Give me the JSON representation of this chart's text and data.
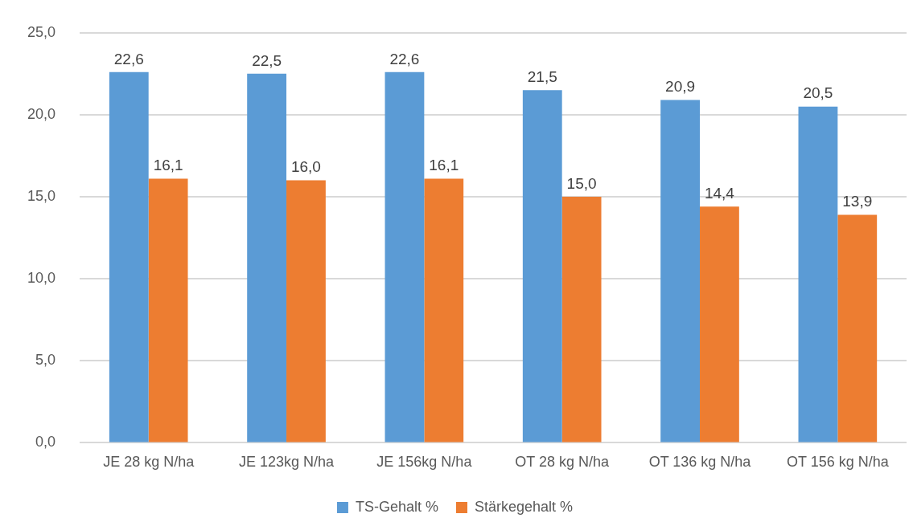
{
  "chart_data": {
    "type": "bar",
    "categories": [
      "JE 28 kg N/ha",
      "JE 123kg N/ha",
      "JE 156kg N/ha",
      "OT 28 kg N/ha",
      "OT 136 kg N/ha",
      "OT 156 kg N/ha"
    ],
    "series": [
      {
        "name": "TS-Gehalt %",
        "color": "#5b9bd5",
        "values": [
          22.6,
          22.5,
          22.6,
          21.5,
          20.9,
          20.5
        ],
        "value_labels": [
          "22,6",
          "22,5",
          "22,6",
          "21,5",
          "20,9",
          "20,5"
        ]
      },
      {
        "name": "Stärkegehalt %",
        "color": "#ed7d31",
        "values": [
          16.1,
          16.0,
          16.1,
          15.0,
          14.4,
          13.9
        ],
        "value_labels": [
          "16,1",
          "16,0",
          "16,1",
          "15,0",
          "14,4",
          "13,9"
        ]
      }
    ],
    "ylim": [
      0,
      25
    ],
    "yticks": [
      {
        "value": 0,
        "label": "0,0"
      },
      {
        "value": 5,
        "label": "5,0"
      },
      {
        "value": 10,
        "label": "10,0"
      },
      {
        "value": 15,
        "label": "15,0"
      },
      {
        "value": 20,
        "label": "20,0"
      },
      {
        "value": 25,
        "label": "25,0"
      }
    ],
    "grid": "y",
    "legend": "bottom"
  }
}
